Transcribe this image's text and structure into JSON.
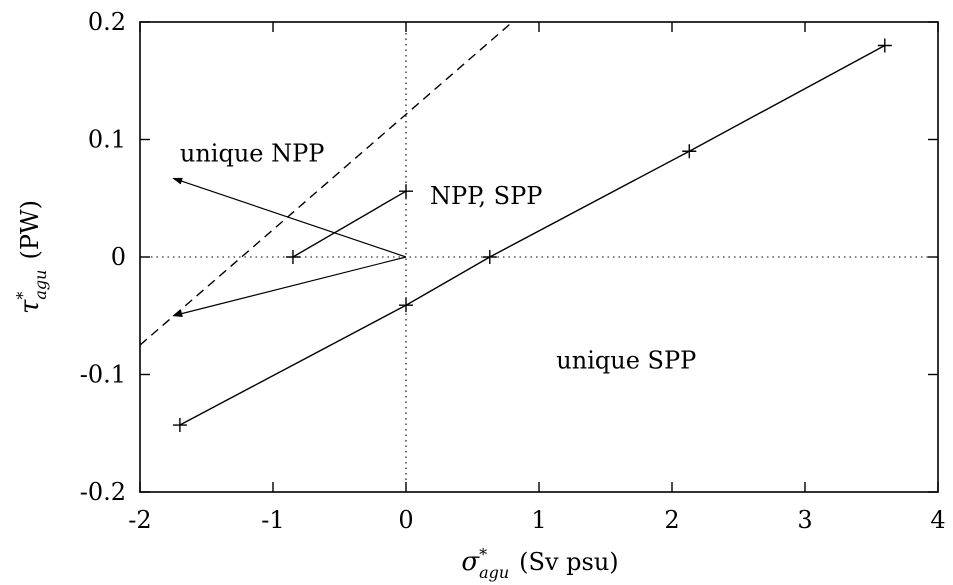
{
  "chart_data": {
    "type": "line",
    "title": "",
    "xlabel": {
      "symbol": "σ",
      "sup": "*",
      "sub": "agu",
      "unit": "(Sv psu)"
    },
    "ylabel": {
      "symbol": "τ",
      "sup": "*",
      "sub": "agu",
      "unit": "(PW)"
    },
    "xlim": [
      -2,
      4
    ],
    "ylim": [
      -0.2,
      0.2
    ],
    "xticks": [
      "-2",
      "-1",
      "0",
      "1",
      "2",
      "3",
      "4"
    ],
    "yticks": [
      "-0.2",
      "-0.1",
      "0",
      "0.1",
      "0.2"
    ],
    "xtick_values": [
      -2,
      -1,
      0,
      1,
      2,
      3,
      4
    ],
    "ytick_values": [
      -0.2,
      -0.1,
      0,
      0.1,
      0.2
    ],
    "grid": false,
    "legend": "none",
    "reference_lines": [
      {
        "orientation": "horizontal",
        "value": 0,
        "style": "dotted"
      },
      {
        "orientation": "vertical",
        "value": 0,
        "style": "dotted"
      }
    ],
    "series": [
      {
        "style": "solid",
        "markers": "plus",
        "x": [
          -1.7,
          0,
          0.63,
          2.13,
          3.6
        ],
        "y": [
          -0.143,
          -0.041,
          0,
          0.09,
          0.18
        ]
      },
      {
        "style": "solid",
        "markers": "plus",
        "x": [
          -0.85,
          0
        ],
        "y": [
          0,
          0.056
        ]
      },
      {
        "style": "dashed",
        "markers": "none",
        "x": [
          -2,
          0.8
        ],
        "y": [
          -0.075,
          0.2
        ]
      }
    ],
    "arrows": [
      {
        "from": [
          0,
          0
        ],
        "to": [
          -1.75,
          0.067
        ]
      },
      {
        "from": [
          0,
          0
        ],
        "to": [
          -1.75,
          -0.05
        ]
      }
    ],
    "annotations": [
      {
        "text": "unique NPP",
        "x": -1.7,
        "y": 0.088
      },
      {
        "text": "NPP, SPP",
        "x": 0.18,
        "y": 0.052
      },
      {
        "text": "unique SPP",
        "x": 1.13,
        "y": -0.088
      }
    ]
  }
}
